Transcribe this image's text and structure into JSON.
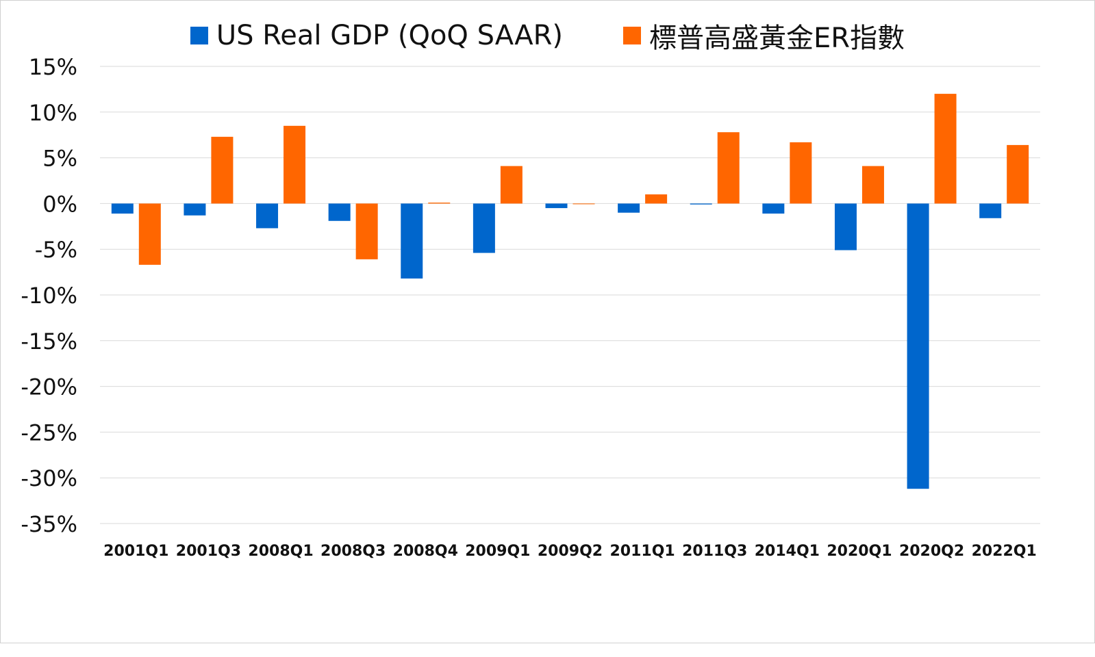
{
  "chart_data": {
    "type": "bar",
    "title": "",
    "xlabel": "",
    "ylabel": "",
    "ylim": [
      -35,
      15
    ],
    "yticks": [
      "15%",
      "10%",
      "5%",
      "0%",
      "-5%",
      "-10%",
      "-15%",
      "-20%",
      "-25%",
      "-30%",
      "-35%"
    ],
    "ytick_values": [
      15,
      10,
      5,
      0,
      -5,
      -10,
      -15,
      -20,
      -25,
      -30,
      -35
    ],
    "grid": true,
    "legend": "top",
    "categories": [
      "2001Q1",
      "2001Q3",
      "2008Q1",
      "2008Q3",
      "2008Q4",
      "2009Q1",
      "2009Q2",
      "2011Q1",
      "2011Q3",
      "2014Q1",
      "2020Q1",
      "2020Q2",
      "2022Q1"
    ],
    "series": [
      {
        "name": "US Real GDP (QoQ SAAR)",
        "color": "#0066cc",
        "values": [
          -1.1,
          -1.3,
          -2.7,
          -1.9,
          -8.2,
          -5.4,
          -0.5,
          -1.0,
          -0.1,
          -1.1,
          -5.1,
          -31.2,
          -1.6
        ]
      },
      {
        "name": "標普高盛黃金ER指數",
        "color": "#ff6600",
        "values": [
          -6.7,
          7.3,
          8.5,
          -6.1,
          0.1,
          4.1,
          0,
          1.0,
          7.8,
          6.7,
          4.1,
          12.0,
          6.4
        ]
      }
    ]
  }
}
